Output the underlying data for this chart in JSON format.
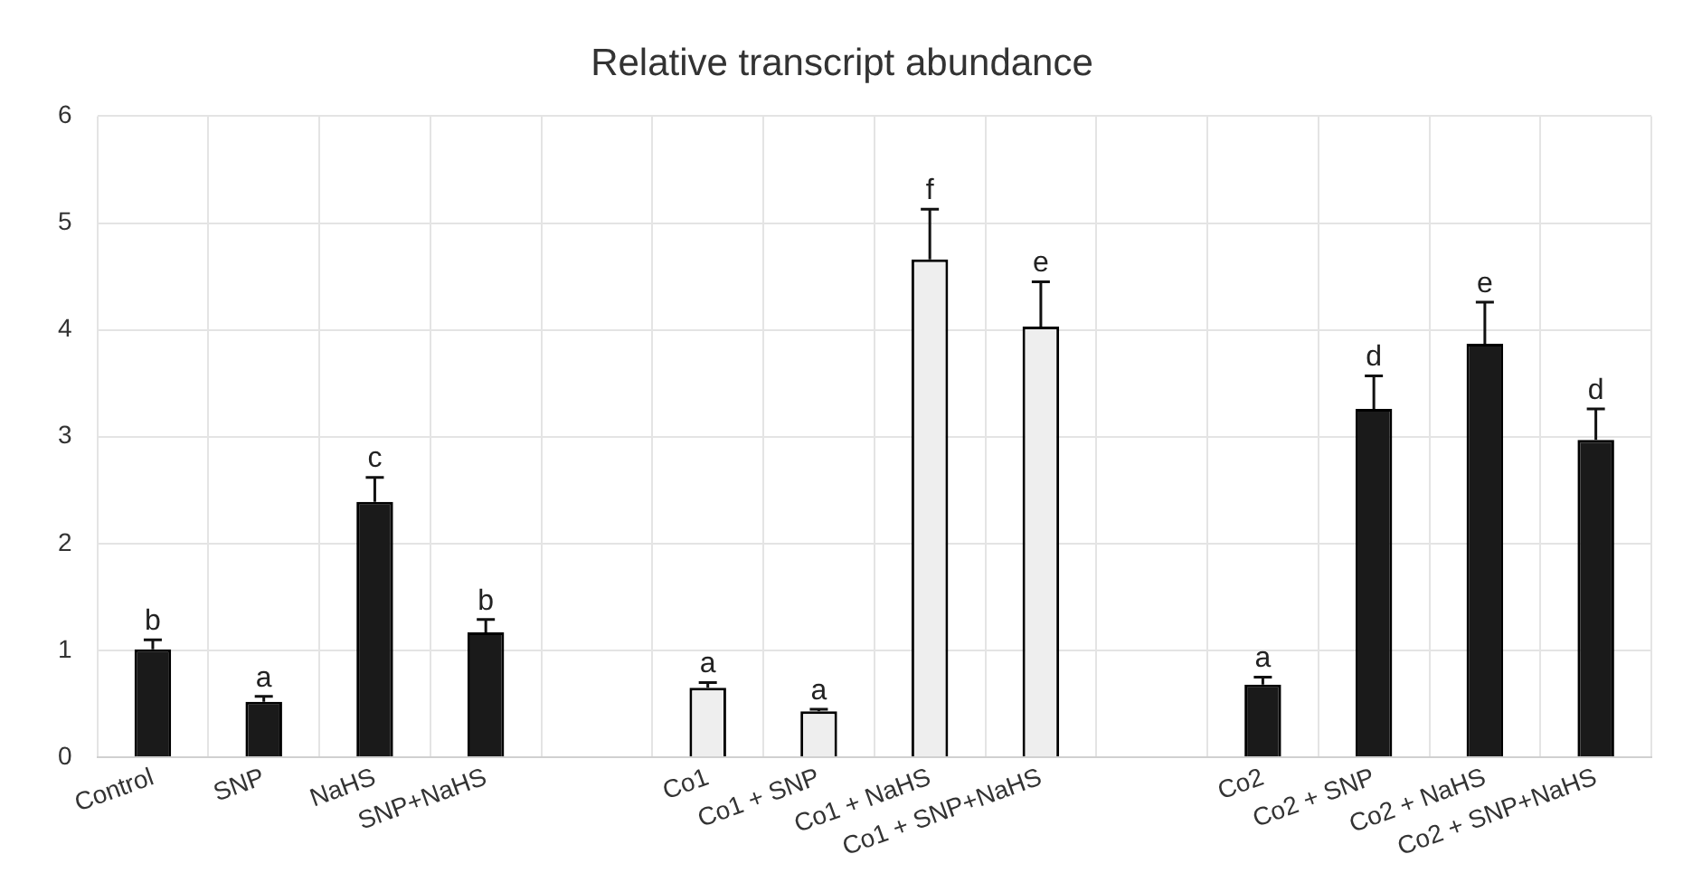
{
  "chart_data": {
    "type": "bar",
    "title": "Relative transcript abundance",
    "categories": [
      "Control",
      "SNP",
      "NaHS",
      "SNP+NaHS",
      null,
      "Co1",
      "Co1 + SNP",
      "Co1 + NaHS",
      "Co1 + SNP+NaHS",
      null,
      "Co2",
      "Co2 + SNP",
      "Co2 + NaHS",
      "Co2 + SNP+NaHS"
    ],
    "values": [
      1.01,
      0.52,
      2.39,
      1.17,
      null,
      0.65,
      0.43,
      4.66,
      4.03,
      null,
      0.68,
      3.26,
      3.87,
      2.97
    ],
    "colors": [
      "#1a1a1a",
      "#1a1a1a",
      "#1a1a1a",
      "#1a1a1a",
      "#1a1a1a",
      "#eeeeee",
      "#eeeeee",
      "#eeeeee",
      "#eeeeee",
      "#1a1a1a",
      "#1a1a1a",
      "#1a1a1a",
      "#1a1a1a",
      "#1a1a1a"
    ],
    "errors": [
      [
        1.01,
        1.1
      ],
      [
        0.52,
        0.57
      ],
      [
        2.39,
        2.62
      ],
      [
        1.17,
        1.29
      ],
      null,
      [
        0.65,
        0.7
      ],
      [
        0.43,
        0.45
      ],
      [
        4.66,
        5.13
      ],
      [
        4.03,
        4.45
      ],
      null,
      [
        0.68,
        0.75
      ],
      [
        3.26,
        3.57
      ],
      [
        3.87,
        4.26
      ],
      [
        2.97,
        3.26
      ]
    ],
    "ylim": [
      0,
      6
    ],
    "yticks": [
      0,
      1,
      2,
      3,
      4,
      5,
      6
    ],
    "grid": true,
    "annotations": [
      {
        "text": "b",
        "x": "Control",
        "y": 1.1
      },
      {
        "text": "a",
        "x": "SNP",
        "y": 0.57
      },
      {
        "text": "c",
        "x": "NaHS",
        "y": 2.62
      },
      {
        "text": "b",
        "x": "SNP+NaHS",
        "y": 1.29
      },
      {
        "text": "a",
        "x": "Co1",
        "y": 0.7
      },
      {
        "text": "a",
        "x": "Co1 + SNP",
        "y": 0.45
      },
      {
        "text": "f",
        "x": "Co1 + NaHS",
        "y": 5.13
      },
      {
        "text": "e",
        "x": "Co1 + SNP+NaHS",
        "y": 4.45
      },
      {
        "text": "a",
        "x": "Co2",
        "y": 0.75
      },
      {
        "text": "d",
        "x": "Co2 + SNP",
        "y": 3.57
      },
      {
        "text": "e",
        "x": "Co2 + NaHS",
        "y": 4.26
      },
      {
        "text": "d",
        "x": "Co2 + SNP+NaHS",
        "y": 3.26
      }
    ]
  }
}
